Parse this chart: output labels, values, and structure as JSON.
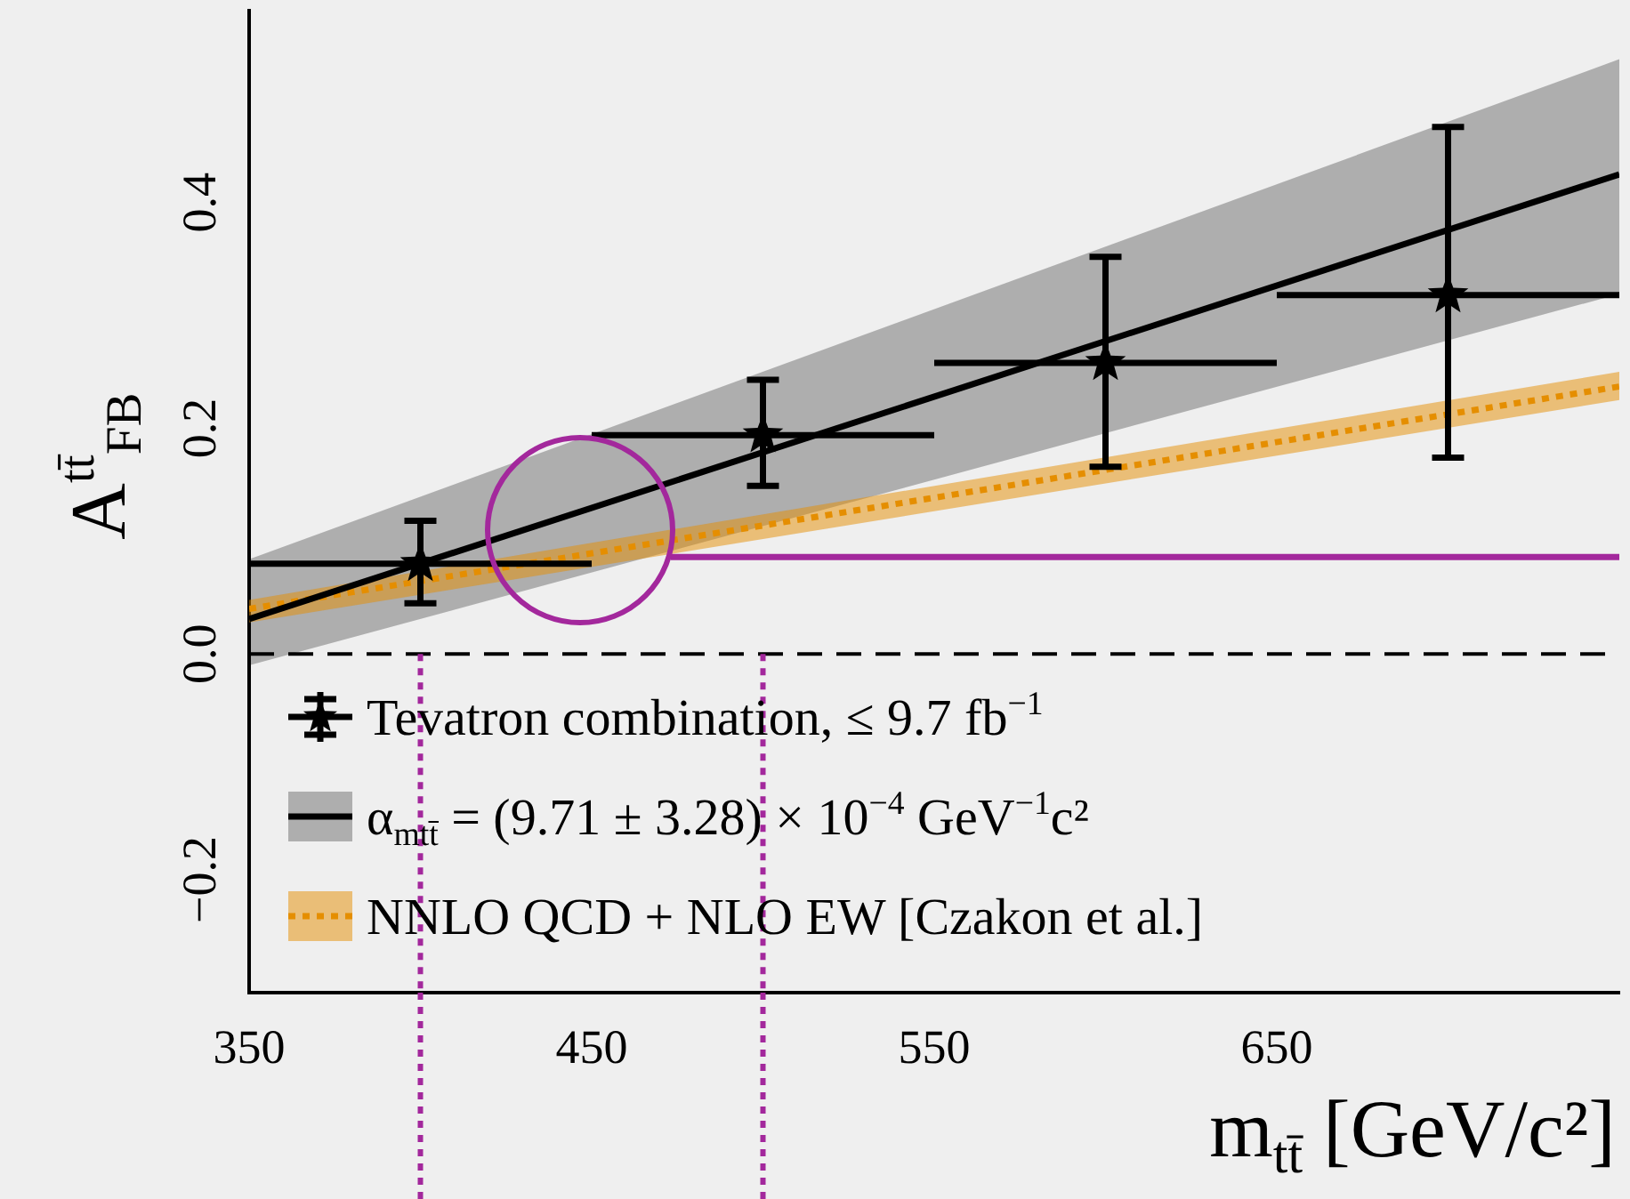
{
  "chart_data": {
    "type": "scatter",
    "xlabel": "m$_{tt̄}$ [GeV/c²]",
    "ylabel": "A$^{tt̄}$$_{FB}$",
    "xlim": [
      350,
      750
    ],
    "ylim": [
      -0.3,
      0.57
    ],
    "xticks": [
      350,
      450,
      550,
      650
    ],
    "yticks": [
      {
        "value": -0.2,
        "label": "−0.2"
      },
      {
        "value": 0,
        "label": "0.0"
      },
      0.2,
      0.4
    ],
    "grid": false,
    "legend": "bottom left",
    "ref_lines": [
      {
        "axis": "y",
        "value": 0,
        "color": "#000000",
        "line_style": "dashed"
      },
      {
        "axis": "x",
        "value": 400,
        "color": "#a3289c",
        "line_style": "dotted"
      },
      {
        "axis": "x",
        "value": 500,
        "color": "#a3289c",
        "line_style": "dotted"
      }
    ],
    "series": [
      {
        "type": "scatter",
        "name": "Tevatron combination, ≤ 9.7 fb$^{−1}$",
        "color": "#000000",
        "marker": "star",
        "x": [
          400,
          500,
          600,
          700
        ],
        "values": [
          0.08,
          0.194,
          0.258,
          0.318
        ],
        "errors": [
          [
            0.045,
            0.118
          ],
          [
            0.149,
            0.243
          ],
          [
            0.166,
            0.352
          ],
          [
            0.174,
            0.467
          ]
        ],
        "xerrors": [
          [
            350,
            450
          ],
          [
            450,
            550
          ],
          [
            550,
            650
          ],
          [
            650,
            750
          ]
        ]
      },
      {
        "type": "line",
        "name": "α$_{mtt̄}$ = (9.71 ± 3.28) × 10$^{−4}$ GeV$^{−1}$c²",
        "color": "#000000",
        "marker": "none",
        "line_style": "solid",
        "x": [
          350,
          750
        ],
        "values": [
          0.031,
          0.425
        ],
        "lower": [
          -0.01,
          0.319
        ],
        "upper": [
          0.084,
          0.527
        ]
      },
      {
        "type": "line",
        "name": "NNLO QCD + NLO EW [Czakon et al.]",
        "color": "#e58e00",
        "marker": "none",
        "line_style": "dotted",
        "x": [
          350,
          750
        ],
        "values": [
          0.04,
          0.237
        ],
        "lower": [
          0.028,
          0.225
        ],
        "upper": [
          0.048,
          0.25
        ]
      },
      {
        "type": "line",
        "color": "#a3289c",
        "marker": "none",
        "line_style": "solid",
        "x": [
          473,
          750
        ],
        "values": [
          0.086,
          0.086
        ]
      }
    ]
  }
}
